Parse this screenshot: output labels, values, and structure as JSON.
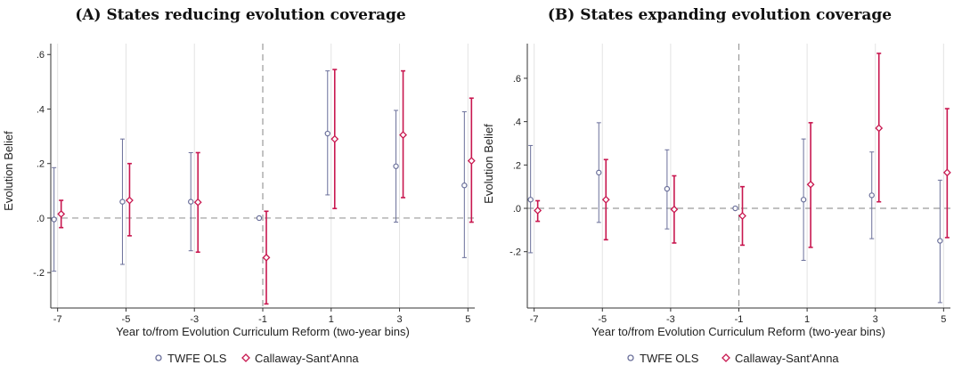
{
  "chart_data": [
    {
      "type": "scatter",
      "title": "(A) States reducing evolution coverage",
      "xlabel": "Year to/from Evolution Curriculum Reform (two-year bins)",
      "ylabel": "Evolution Belief",
      "x_ticks": [
        -7,
        -5,
        -3,
        -1,
        1,
        3,
        5
      ],
      "x_tick_labels": [
        "-7",
        "-5",
        "-3",
        "-1",
        "1",
        "3",
        "5"
      ],
      "xlim": [
        -7.2,
        5.2
      ],
      "ylim": [
        -0.33,
        0.64
      ],
      "y_ticks": [
        -0.2,
        0.0,
        0.2,
        0.4,
        0.6
      ],
      "y_tick_labels": [
        "-.2",
        ".0",
        ".2",
        ".4",
        ".6"
      ],
      "reference_x": -1,
      "reference_y": 0,
      "grid": true,
      "series": [
        {
          "name": "TWFE OLS",
          "color": "#6a6f9a",
          "marker": "circle",
          "points": [
            {
              "x": -7,
              "y": -0.005,
              "lo": -0.195,
              "hi": 0.185
            },
            {
              "x": -5,
              "y": 0.06,
              "lo": -0.17,
              "hi": 0.29
            },
            {
              "x": -3,
              "y": 0.06,
              "lo": -0.12,
              "hi": 0.24
            },
            {
              "x": -1,
              "y": 0.0,
              "lo": 0.0,
              "hi": 0.0
            },
            {
              "x": 1,
              "y": 0.31,
              "lo": 0.085,
              "hi": 0.54
            },
            {
              "x": 3,
              "y": 0.19,
              "lo": -0.015,
              "hi": 0.395
            },
            {
              "x": 5,
              "y": 0.12,
              "lo": -0.145,
              "hi": 0.39
            }
          ]
        },
        {
          "name": "Callaway-Sant'Anna",
          "color": "#c8174f",
          "marker": "diamond",
          "points": [
            {
              "x": -7,
              "y": 0.015,
              "lo": -0.035,
              "hi": 0.065
            },
            {
              "x": -5,
              "y": 0.065,
              "lo": -0.065,
              "hi": 0.2
            },
            {
              "x": -3,
              "y": 0.058,
              "lo": -0.125,
              "hi": 0.24
            },
            {
              "x": -1,
              "y": -0.145,
              "lo": -0.315,
              "hi": 0.025
            },
            {
              "x": 1,
              "y": 0.29,
              "lo": 0.035,
              "hi": 0.545
            },
            {
              "x": 3,
              "y": 0.305,
              "lo": 0.075,
              "hi": 0.54
            },
            {
              "x": 5,
              "y": 0.21,
              "lo": -0.015,
              "hi": 0.44
            }
          ]
        }
      ],
      "legend": "bottom"
    },
    {
      "type": "scatter",
      "title": "(B) States expanding evolution coverage",
      "xlabel": "Year to/from Evolution Curriculum Reform (two-year bins)",
      "ylabel": "Evolution Belief",
      "x_ticks": [
        -7,
        -5,
        -3,
        -1,
        1,
        3,
        5
      ],
      "x_tick_labels": [
        "-7",
        "-5",
        "-3",
        "-1",
        "1",
        "3",
        "5"
      ],
      "xlim": [
        -7.2,
        5.2
      ],
      "ylim": [
        -0.46,
        0.76
      ],
      "y_ticks": [
        -0.2,
        0.0,
        0.2,
        0.4,
        0.6
      ],
      "y_tick_labels": [
        "-.2",
        ".0",
        ".2",
        ".4",
        ".6"
      ],
      "reference_x": -1,
      "reference_y": 0,
      "grid": true,
      "series": [
        {
          "name": "TWFE OLS",
          "color": "#6a6f9a",
          "marker": "circle",
          "points": [
            {
              "x": -7,
              "y": 0.04,
              "lo": -0.205,
              "hi": 0.29
            },
            {
              "x": -5,
              "y": 0.165,
              "lo": -0.065,
              "hi": 0.395
            },
            {
              "x": -3,
              "y": 0.09,
              "lo": -0.095,
              "hi": 0.27
            },
            {
              "x": -1,
              "y": 0.0,
              "lo": 0.0,
              "hi": 0.0
            },
            {
              "x": 1,
              "y": 0.04,
              "lo": -0.24,
              "hi": 0.32
            },
            {
              "x": 3,
              "y": 0.06,
              "lo": -0.14,
              "hi": 0.26
            },
            {
              "x": 5,
              "y": -0.15,
              "lo": -0.435,
              "hi": 0.13
            }
          ]
        },
        {
          "name": "Callaway-Sant'Anna",
          "color": "#c8174f",
          "marker": "diamond",
          "points": [
            {
              "x": -7,
              "y": -0.01,
              "lo": -0.06,
              "hi": 0.035
            },
            {
              "x": -5,
              "y": 0.04,
              "lo": -0.145,
              "hi": 0.225
            },
            {
              "x": -3,
              "y": -0.005,
              "lo": -0.16,
              "hi": 0.15
            },
            {
              "x": -1,
              "y": -0.035,
              "lo": -0.17,
              "hi": 0.1
            },
            {
              "x": 1,
              "y": 0.11,
              "lo": -0.18,
              "hi": 0.395
            },
            {
              "x": 3,
              "y": 0.37,
              "lo": 0.03,
              "hi": 0.715
            },
            {
              "x": 5,
              "y": 0.165,
              "lo": -0.135,
              "hi": 0.46
            }
          ]
        }
      ],
      "legend": "bottom"
    }
  ]
}
